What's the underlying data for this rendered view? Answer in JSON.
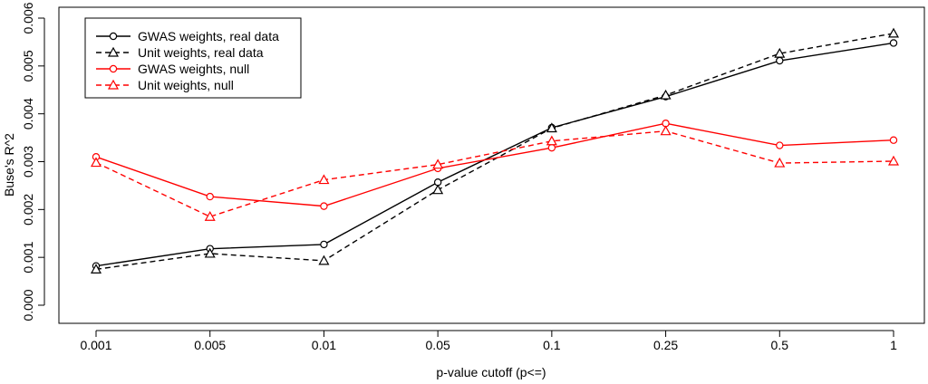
{
  "chart_data": {
    "type": "line",
    "title": "",
    "xlabel": "p-value cutoff (p<=)",
    "ylabel": "Buse's R^2",
    "categories": [
      "0.001",
      "0.005",
      "0.01",
      "0.05",
      "0.1",
      "0.25",
      "0.5",
      "1"
    ],
    "ylim": [
      0,
      0.006
    ],
    "yticks": [
      "0.000",
      "0.001",
      "0.002",
      "0.003",
      "0.004",
      "0.005",
      "0.006"
    ],
    "ytick_values": [
      0,
      0.001,
      0.002,
      0.003,
      0.004,
      0.005,
      0.006
    ],
    "grid": false,
    "legend_position": "top-left",
    "series": [
      {
        "name": "GWAS weights, real data",
        "color": "#000000",
        "line": "solid",
        "marker": "circle",
        "values": [
          0.00082,
          0.00118,
          0.00127,
          0.00257,
          0.00371,
          0.00436,
          0.00511,
          0.00548
        ]
      },
      {
        "name": "Unit weights, real data",
        "color": "#000000",
        "line": "dashed",
        "marker": "triangle",
        "values": [
          0.00075,
          0.00108,
          0.00093,
          0.00241,
          0.0037,
          0.00439,
          0.00526,
          0.00568
        ]
      },
      {
        "name": "GWAS weights, null",
        "color": "#ff0000",
        "line": "solid",
        "marker": "circle",
        "values": [
          0.0031,
          0.00227,
          0.00207,
          0.00286,
          0.00329,
          0.0038,
          0.00334,
          0.00345
        ]
      },
      {
        "name": "Unit weights, null",
        "color": "#ff0000",
        "line": "dashed",
        "marker": "triangle",
        "values": [
          0.00298,
          0.00185,
          0.00262,
          0.00294,
          0.00343,
          0.00364,
          0.00297,
          0.00301
        ]
      }
    ]
  }
}
